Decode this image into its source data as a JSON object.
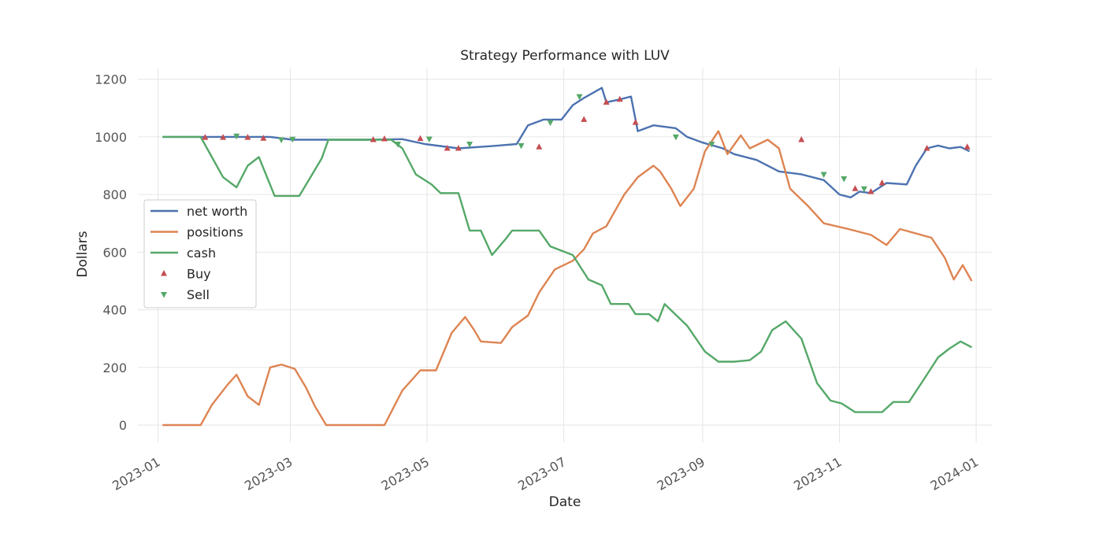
{
  "chart_data": {
    "type": "line",
    "title": "Strategy Performance with LUV",
    "xlabel": "Date",
    "ylabel": "Dollars",
    "xlim": [
      "2022-12-23",
      "2024-01-08"
    ],
    "ylim": [
      -60,
      1240
    ],
    "x_ticks": [
      "2023-01",
      "2023-03",
      "2023-05",
      "2023-07",
      "2023-09",
      "2023-11",
      "2024-01"
    ],
    "y_ticks": [
      0,
      200,
      400,
      600,
      800,
      1000,
      1200
    ],
    "grid": true,
    "legend_position": "center-left",
    "colors": {
      "net worth": "#4c72b0",
      "positions": "#dd8452",
      "cash": "#55a868",
      "Buy": "#c44e52",
      "Sell": "#55a868"
    },
    "series": [
      {
        "name": "net worth",
        "points": [
          [
            "2023-01-03",
            1000
          ],
          [
            "2023-01-24",
            1000
          ],
          [
            "2023-02-10",
            1000
          ],
          [
            "2023-02-20",
            1000
          ],
          [
            "2023-03-02",
            990
          ],
          [
            "2023-04-05",
            990
          ],
          [
            "2023-04-20",
            992
          ],
          [
            "2023-04-30",
            975
          ],
          [
            "2023-05-15",
            960
          ],
          [
            "2023-05-30",
            968
          ],
          [
            "2023-06-10",
            975
          ],
          [
            "2023-06-15",
            1040
          ],
          [
            "2023-06-22",
            1060
          ],
          [
            "2023-06-30",
            1060
          ],
          [
            "2023-07-05",
            1110
          ],
          [
            "2023-07-10",
            1135
          ],
          [
            "2023-07-18",
            1170
          ],
          [
            "2023-07-20",
            1120
          ],
          [
            "2023-07-26",
            1130
          ],
          [
            "2023-07-31",
            1140
          ],
          [
            "2023-08-03",
            1020
          ],
          [
            "2023-08-10",
            1040
          ],
          [
            "2023-08-20",
            1030
          ],
          [
            "2023-08-25",
            1000
          ],
          [
            "2023-09-01",
            980
          ],
          [
            "2023-09-10",
            960
          ],
          [
            "2023-09-15",
            940
          ],
          [
            "2023-09-25",
            920
          ],
          [
            "2023-10-05",
            880
          ],
          [
            "2023-10-15",
            870
          ],
          [
            "2023-10-25",
            850
          ],
          [
            "2023-11-01",
            800
          ],
          [
            "2023-11-06",
            790
          ],
          [
            "2023-11-10",
            810
          ],
          [
            "2023-11-15",
            805
          ],
          [
            "2023-11-22",
            840
          ],
          [
            "2023-12-01",
            835
          ],
          [
            "2023-12-05",
            900
          ],
          [
            "2023-12-10",
            960
          ],
          [
            "2023-12-15",
            970
          ],
          [
            "2023-12-20",
            960
          ],
          [
            "2023-12-25",
            965
          ],
          [
            "2023-12-29",
            950
          ]
        ]
      },
      {
        "name": "positions",
        "points": [
          [
            "2023-01-03",
            0
          ],
          [
            "2023-01-20",
            0
          ],
          [
            "2023-01-25",
            70
          ],
          [
            "2023-02-01",
            140
          ],
          [
            "2023-02-05",
            175
          ],
          [
            "2023-02-10",
            100
          ],
          [
            "2023-02-15",
            70
          ],
          [
            "2023-02-20",
            200
          ],
          [
            "2023-02-25",
            210
          ],
          [
            "2023-03-03",
            195
          ],
          [
            "2023-03-08",
            130
          ],
          [
            "2023-03-12",
            65
          ],
          [
            "2023-03-17",
            0
          ],
          [
            "2023-04-12",
            0
          ],
          [
            "2023-04-20",
            120
          ],
          [
            "2023-04-28",
            190
          ],
          [
            "2023-05-05",
            190
          ],
          [
            "2023-05-12",
            320
          ],
          [
            "2023-05-18",
            375
          ],
          [
            "2023-05-22",
            330
          ],
          [
            "2023-05-25",
            290
          ],
          [
            "2023-06-03",
            285
          ],
          [
            "2023-06-08",
            340
          ],
          [
            "2023-06-15",
            380
          ],
          [
            "2023-06-20",
            460
          ],
          [
            "2023-06-27",
            540
          ],
          [
            "2023-07-05",
            570
          ],
          [
            "2023-07-10",
            610
          ],
          [
            "2023-07-14",
            665
          ],
          [
            "2023-07-20",
            690
          ],
          [
            "2023-07-28",
            800
          ],
          [
            "2023-08-03",
            860
          ],
          [
            "2023-08-10",
            900
          ],
          [
            "2023-08-13",
            880
          ],
          [
            "2023-08-18",
            820
          ],
          [
            "2023-08-22",
            760
          ],
          [
            "2023-08-28",
            820
          ],
          [
            "2023-09-02",
            950
          ],
          [
            "2023-09-08",
            1020
          ],
          [
            "2023-09-12",
            940
          ],
          [
            "2023-09-18",
            1005
          ],
          [
            "2023-09-22",
            960
          ],
          [
            "2023-09-30",
            990
          ],
          [
            "2023-10-05",
            960
          ],
          [
            "2023-10-10",
            820
          ],
          [
            "2023-10-18",
            760
          ],
          [
            "2023-10-25",
            700
          ],
          [
            "2023-11-05",
            680
          ],
          [
            "2023-11-15",
            660
          ],
          [
            "2023-11-22",
            625
          ],
          [
            "2023-11-28",
            680
          ],
          [
            "2023-12-05",
            665
          ],
          [
            "2023-12-12",
            650
          ],
          [
            "2023-12-18",
            580
          ],
          [
            "2023-12-22",
            505
          ],
          [
            "2023-12-26",
            555
          ],
          [
            "2023-12-30",
            500
          ]
        ]
      },
      {
        "name": "cash",
        "points": [
          [
            "2023-01-03",
            1000
          ],
          [
            "2023-01-20",
            1000
          ],
          [
            "2023-01-25",
            930
          ],
          [
            "2023-01-30",
            860
          ],
          [
            "2023-02-05",
            825
          ],
          [
            "2023-02-10",
            900
          ],
          [
            "2023-02-15",
            930
          ],
          [
            "2023-02-22",
            795
          ],
          [
            "2023-03-05",
            795
          ],
          [
            "2023-03-10",
            860
          ],
          [
            "2023-03-15",
            925
          ],
          [
            "2023-03-18",
            990
          ],
          [
            "2023-04-15",
            990
          ],
          [
            "2023-04-20",
            960
          ],
          [
            "2023-04-26",
            870
          ],
          [
            "2023-05-03",
            835
          ],
          [
            "2023-05-07",
            805
          ],
          [
            "2023-05-15",
            805
          ],
          [
            "2023-05-20",
            675
          ],
          [
            "2023-05-25",
            675
          ],
          [
            "2023-05-30",
            590
          ],
          [
            "2023-06-05",
            645
          ],
          [
            "2023-06-08",
            675
          ],
          [
            "2023-06-20",
            675
          ],
          [
            "2023-06-25",
            620
          ],
          [
            "2023-07-05",
            590
          ],
          [
            "2023-07-12",
            505
          ],
          [
            "2023-07-18",
            485
          ],
          [
            "2023-07-22",
            420
          ],
          [
            "2023-07-30",
            420
          ],
          [
            "2023-08-02",
            385
          ],
          [
            "2023-08-08",
            385
          ],
          [
            "2023-08-12",
            360
          ],
          [
            "2023-08-15",
            420
          ],
          [
            "2023-08-25",
            345
          ],
          [
            "2023-09-02",
            255
          ],
          [
            "2023-09-08",
            220
          ],
          [
            "2023-09-15",
            220
          ],
          [
            "2023-09-22",
            225
          ],
          [
            "2023-09-27",
            255
          ],
          [
            "2023-10-02",
            330
          ],
          [
            "2023-10-08",
            360
          ],
          [
            "2023-10-15",
            300
          ],
          [
            "2023-10-22",
            145
          ],
          [
            "2023-10-28",
            85
          ],
          [
            "2023-11-02",
            75
          ],
          [
            "2023-11-08",
            45
          ],
          [
            "2023-11-20",
            45
          ],
          [
            "2023-11-25",
            80
          ],
          [
            "2023-12-02",
            80
          ],
          [
            "2023-12-10",
            175
          ],
          [
            "2023-12-15",
            235
          ],
          [
            "2023-12-20",
            265
          ],
          [
            "2023-12-25",
            290
          ],
          [
            "2023-12-30",
            270
          ]
        ]
      },
      {
        "name": "Buy",
        "marker": "triangle-up",
        "points": [
          [
            "2023-01-22",
            998
          ],
          [
            "2023-01-30",
            998
          ],
          [
            "2023-02-10",
            998
          ],
          [
            "2023-02-17",
            995
          ],
          [
            "2023-04-07",
            990
          ],
          [
            "2023-04-12",
            993
          ],
          [
            "2023-04-28",
            994
          ],
          [
            "2023-05-10",
            960
          ],
          [
            "2023-05-15",
            960
          ],
          [
            "2023-06-20",
            965
          ],
          [
            "2023-07-10",
            1060
          ],
          [
            "2023-07-20",
            1120
          ],
          [
            "2023-07-26",
            1130
          ],
          [
            "2023-08-02",
            1050
          ],
          [
            "2023-10-15",
            990
          ],
          [
            "2023-11-08",
            820
          ],
          [
            "2023-11-15",
            810
          ],
          [
            "2023-11-20",
            840
          ],
          [
            "2023-12-10",
            960
          ],
          [
            "2023-12-28",
            965
          ]
        ]
      },
      {
        "name": "Sell",
        "marker": "triangle-down",
        "points": [
          [
            "2023-02-05",
            1003
          ],
          [
            "2023-02-25",
            990
          ],
          [
            "2023-03-02",
            992
          ],
          [
            "2023-04-18",
            975
          ],
          [
            "2023-05-02",
            993
          ],
          [
            "2023-05-20",
            975
          ],
          [
            "2023-06-12",
            970
          ],
          [
            "2023-06-25",
            1050
          ],
          [
            "2023-07-08",
            1140
          ],
          [
            "2023-08-20",
            1000
          ],
          [
            "2023-09-05",
            975
          ],
          [
            "2023-10-25",
            870
          ],
          [
            "2023-11-03",
            855
          ],
          [
            "2023-11-12",
            820
          ]
        ]
      }
    ],
    "legend": [
      "net worth",
      "positions",
      "cash",
      "Buy",
      "Sell"
    ]
  }
}
